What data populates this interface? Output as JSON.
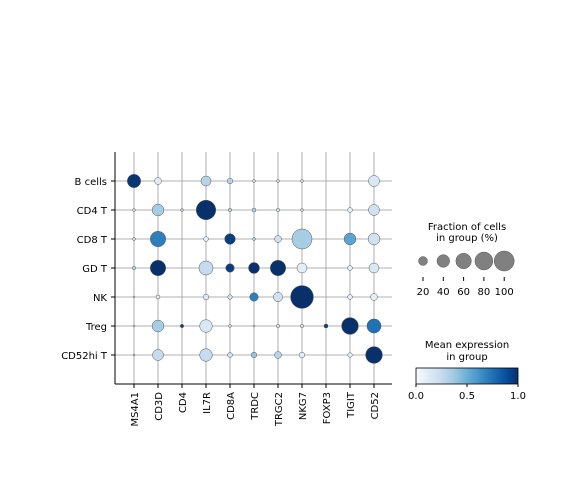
{
  "chart_data": {
    "type": "dotplot",
    "genes": [
      "MS4A1",
      "CD3D",
      "CD4",
      "IL7R",
      "CD8A",
      "TRDC",
      "TRGC2",
      "NKG7",
      "FOXP3",
      "TIGIT",
      "CD52"
    ],
    "groups": [
      "B cells",
      "CD4 T",
      "CD8 T",
      "GD T",
      "NK",
      "Treg",
      "CD52hi T"
    ],
    "fraction_in_group_pct": [
      [
        45,
        12,
        0,
        25,
        8,
        2,
        2,
        2,
        0,
        0,
        30
      ],
      [
        2,
        35,
        2,
        95,
        3,
        4,
        3,
        2,
        0,
        6,
        30
      ],
      [
        2,
        60,
        0,
        6,
        28,
        2,
        12,
        100,
        0,
        35,
        35
      ],
      [
        3,
        60,
        0,
        50,
        18,
        30,
        60,
        25,
        0,
        6,
        25
      ],
      [
        1,
        4,
        0,
        8,
        5,
        18,
        22,
        130,
        0,
        6,
        12
      ],
      [
        1,
        35,
        3,
        40,
        2,
        1,
        3,
        3,
        4,
        70,
        50
      ],
      [
        1,
        30,
        0,
        40,
        6,
        8,
        12,
        8,
        0,
        5,
        70
      ]
    ],
    "mean_expression": [
      [
        0.98,
        0.12,
        0,
        0.3,
        0.3,
        0.15,
        0.2,
        0.2,
        0,
        0,
        0.15
      ],
      [
        0.2,
        0.35,
        0.3,
        1.0,
        0.3,
        0.3,
        0.2,
        0.25,
        0,
        0.1,
        0.2
      ],
      [
        0.2,
        0.7,
        0,
        0.1,
        0.95,
        0.3,
        0.2,
        0.35,
        0,
        0.55,
        0.2
      ],
      [
        0.3,
        1.0,
        0,
        0.25,
        0.95,
        1.0,
        1.0,
        0.1,
        0,
        0.1,
        0.15
      ],
      [
        0.2,
        0.1,
        0,
        0.15,
        0.2,
        0.7,
        0.2,
        1.0,
        0,
        0.1,
        0.1
      ],
      [
        0.2,
        0.35,
        0.95,
        0.15,
        0.2,
        0.2,
        0.2,
        0.2,
        0.95,
        1.0,
        0.75
      ],
      [
        0.2,
        0.25,
        0,
        0.25,
        0.2,
        0.4,
        0.3,
        0.1,
        0,
        0.1,
        1.0
      ]
    ],
    "size_legend": {
      "title": "Fraction of cells\nin group (%)",
      "values": [
        20,
        40,
        60,
        80,
        100
      ],
      "labels": [
        "20",
        "40",
        "60",
        "80",
        "100"
      ]
    },
    "color_legend": {
      "title": "Mean expression\nin group",
      "range": [
        0.0,
        1.0
      ],
      "ticks": [
        "0.0",
        "0.5",
        "1.0"
      ],
      "colormap": [
        "#f7fbff",
        "#deebf7",
        "#c6dbef",
        "#9ecae1",
        "#6baed6",
        "#4292c6",
        "#2171b5",
        "#08519c",
        "#08306b"
      ]
    }
  }
}
